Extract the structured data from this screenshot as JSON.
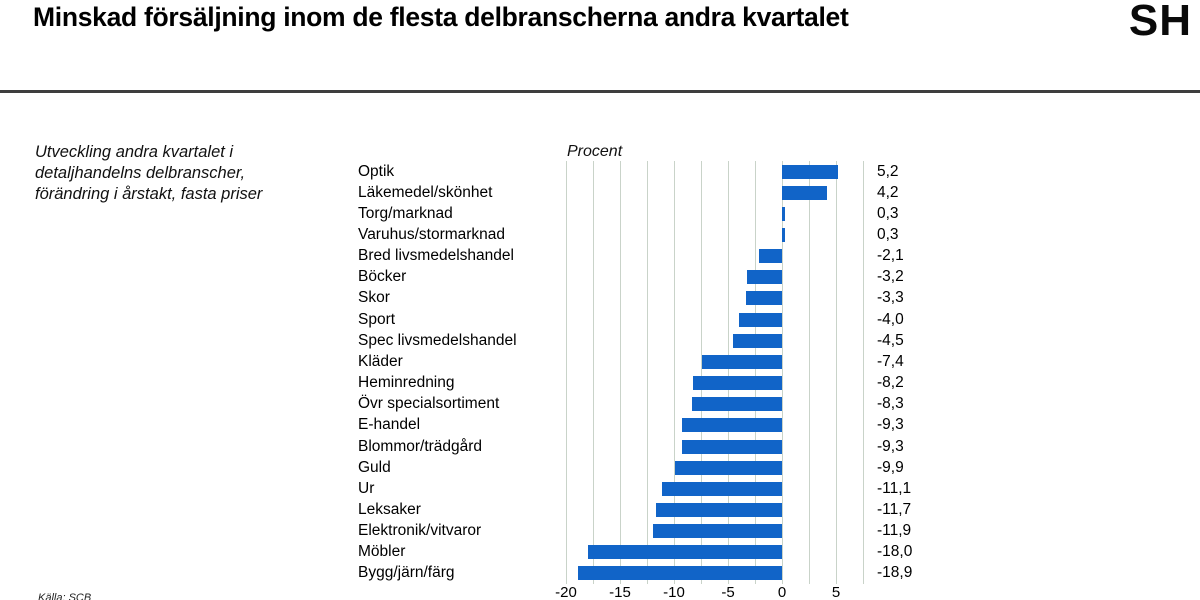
{
  "header": {
    "title": "Minskad försäljning inom de flesta delbranscherna andra kvartalet",
    "logo": "SH"
  },
  "note": "Utveckling andra kvartalet i\ndetaljhandelns delbranscher,\nförändring i årstakt, fasta priser",
  "source": "Källa: SCB",
  "chart_data": {
    "type": "bar",
    "orientation": "horizontal",
    "title": "Procent",
    "categories": [
      "Optik",
      "Läkemedel/skönhet",
      "Torg/marknad",
      "Varuhus/stormarknad",
      "Bred livsmedelshandel",
      "Böcker",
      "Skor",
      "Sport",
      "Spec livsmedelshandel",
      "Kläder",
      "Heminredning",
      "Övr specialsortiment",
      "E-handel",
      "Blommor/trädgård",
      "Guld",
      "Ur",
      "Leksaker",
      "Elektronik/vitvaror",
      "Möbler",
      "Bygg/järn/färg"
    ],
    "values": [
      5.2,
      4.2,
      0.3,
      0.3,
      -2.1,
      -3.2,
      -3.3,
      -4.0,
      -4.5,
      -7.4,
      -8.2,
      -8.3,
      -9.3,
      -9.3,
      -9.9,
      -11.1,
      -11.7,
      -11.9,
      -18.0,
      -18.9
    ],
    "value_labels": [
      "5,2",
      "4,2",
      "0,3",
      "0,3",
      "-2,1",
      "-3,2",
      "-3,3",
      "-4,0",
      "-4,5",
      "-7,4",
      "-8,2",
      "-8,3",
      "-9,3",
      "-9,3",
      "-9,9",
      "-11,1",
      "-11,7",
      "-11,9",
      "-18,0",
      "-18,9"
    ],
    "xlim": [
      -20,
      7.5
    ],
    "x_ticks": [
      -20,
      -15,
      -10,
      -5,
      0,
      5
    ],
    "gridline_step": 2.5,
    "grid": true,
    "legend": "none",
    "bar_color": "#1164c8",
    "gridline_color": "#c9d3c9"
  }
}
